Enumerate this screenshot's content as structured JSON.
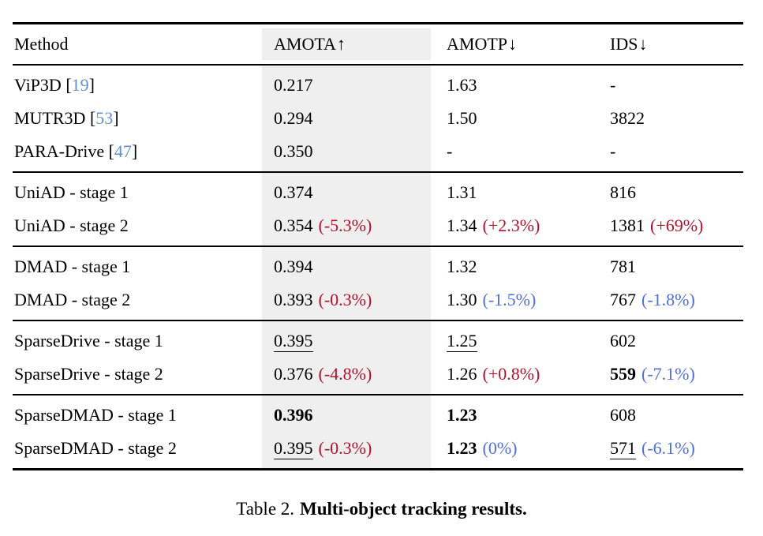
{
  "colors": {
    "negative_red": "#b0122c",
    "positive_blue": "#4f6fdc",
    "citation_blue": "#6291c8",
    "amota_highlight": "#efefef",
    "rule_black": "#000000"
  },
  "table": {
    "columns": [
      {
        "label": "Method",
        "arrow": ""
      },
      {
        "label": "AMOTA",
        "arrow": "↑"
      },
      {
        "label": "AMOTP",
        "arrow": "↓"
      },
      {
        "label": "IDS",
        "arrow": "↓"
      }
    ],
    "groups": [
      {
        "rows": [
          {
            "method": {
              "name": "ViP3D",
              "cite": "19"
            },
            "cells": [
              {
                "text": "0.217"
              },
              {
                "text": "1.63"
              },
              {
                "text": "-"
              }
            ]
          },
          {
            "method": {
              "name": "MUTR3D",
              "cite": "53"
            },
            "cells": [
              {
                "text": "0.294"
              },
              {
                "text": "1.50"
              },
              {
                "text": "3822"
              }
            ]
          },
          {
            "method": {
              "name": "PARA-Drive",
              "cite": "47"
            },
            "cells": [
              {
                "text": "0.350"
              },
              {
                "text": "-"
              },
              {
                "text": "-"
              }
            ]
          }
        ]
      },
      {
        "rows": [
          {
            "method": {
              "name": "UniAD - stage 1"
            },
            "cells": [
              {
                "text": "0.374"
              },
              {
                "text": "1.31"
              },
              {
                "text": "816"
              }
            ]
          },
          {
            "method": {
              "name": "UniAD - stage 2"
            },
            "cells": [
              {
                "text": "0.354",
                "delta": {
                  "text": "(-5.3%)",
                  "color": "red"
                }
              },
              {
                "text": "1.34",
                "delta": {
                  "text": "(+2.3%)",
                  "color": "red"
                }
              },
              {
                "text": "1381",
                "delta": {
                  "text": "(+69%)",
                  "color": "red"
                }
              }
            ]
          }
        ]
      },
      {
        "rows": [
          {
            "method": {
              "name": "DMAD - stage 1"
            },
            "cells": [
              {
                "text": "0.394"
              },
              {
                "text": "1.32"
              },
              {
                "text": "781"
              }
            ]
          },
          {
            "method": {
              "name": "DMAD - stage 2"
            },
            "cells": [
              {
                "text": "0.393",
                "delta": {
                  "text": "(-0.3%)",
                  "color": "red"
                }
              },
              {
                "text": "1.30",
                "delta": {
                  "text": "(-1.5%)",
                  "color": "blue"
                }
              },
              {
                "text": "767",
                "delta": {
                  "text": "(-1.8%)",
                  "color": "blue"
                }
              }
            ]
          }
        ]
      },
      {
        "rows": [
          {
            "method": {
              "name": "SparseDrive - stage 1"
            },
            "cells": [
              {
                "text": "0.395",
                "style": "underline"
              },
              {
                "text": "1.25",
                "style": "underline"
              },
              {
                "text": "602"
              }
            ]
          },
          {
            "method": {
              "name": "SparseDrive - stage 2"
            },
            "cells": [
              {
                "text": "0.376",
                "delta": {
                  "text": "(-4.8%)",
                  "color": "red"
                }
              },
              {
                "text": "1.26",
                "delta": {
                  "text": "(+0.8%)",
                  "color": "red"
                }
              },
              {
                "text": "559",
                "style": "bold",
                "delta": {
                  "text": "(-7.1%)",
                  "color": "blue"
                }
              }
            ]
          }
        ]
      },
      {
        "rows": [
          {
            "method": {
              "name": "SparseDMAD - stage 1"
            },
            "cells": [
              {
                "text": "0.396",
                "style": "bold"
              },
              {
                "text": "1.23",
                "style": "bold"
              },
              {
                "text": "608"
              }
            ]
          },
          {
            "method": {
              "name": "SparseDMAD - stage 2"
            },
            "cells": [
              {
                "text": "0.395",
                "style": "underline",
                "delta": {
                  "text": "(-0.3%)",
                  "color": "red"
                }
              },
              {
                "text": "1.23",
                "style": "bold",
                "delta": {
                  "text": "(0%)",
                  "color": "blue"
                }
              },
              {
                "text": "571",
                "style": "underline",
                "delta": {
                  "text": "(-6.1%)",
                  "color": "blue"
                }
              }
            ]
          }
        ]
      }
    ]
  },
  "caption": {
    "prefix": "Table 2.",
    "title": "Multi-object tracking results."
  }
}
